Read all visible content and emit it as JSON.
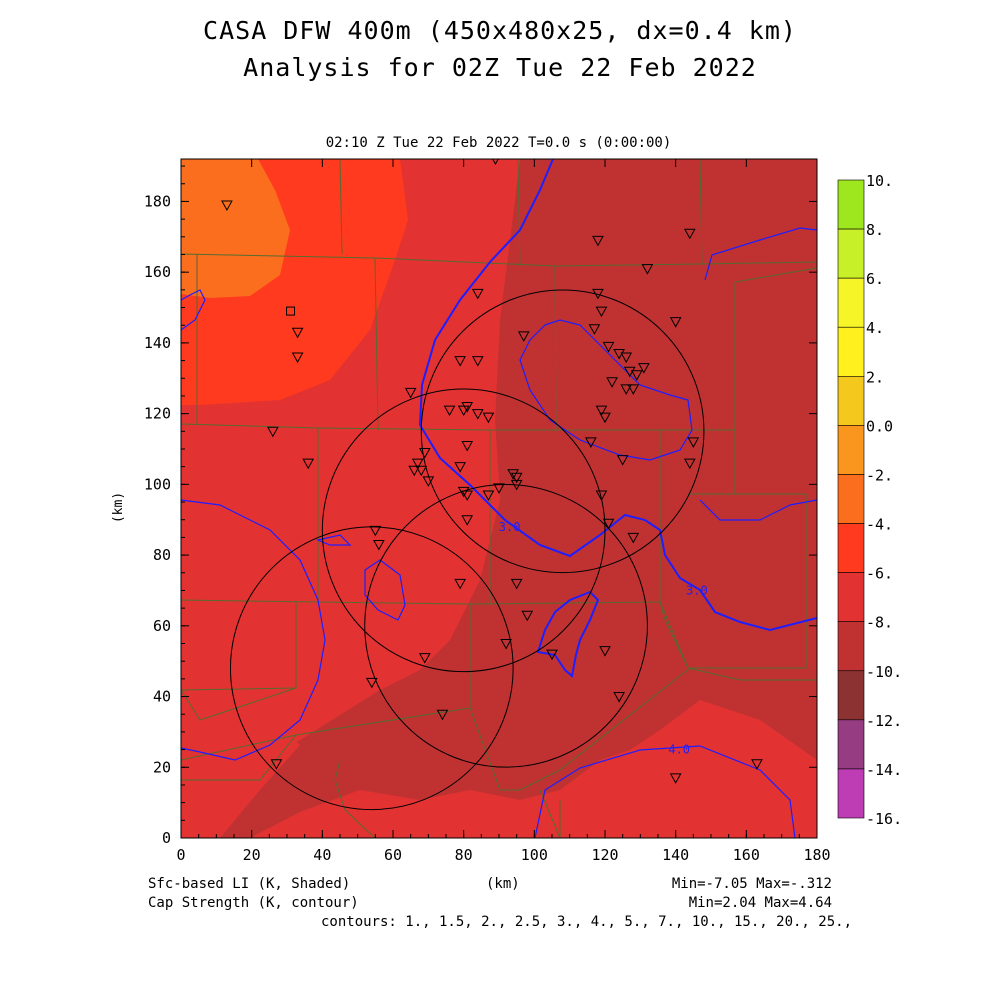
{
  "header": {
    "title_line1": "CASA DFW 400m (450x480x25, dx=0.4 km)",
    "title_line2": "Analysis for 02Z Tue 22 Feb 2022",
    "valid_time": "02:10 Z Tue 22 Feb 2022    T=0.0 s (0:00:00)"
  },
  "axes": {
    "x_label": "(km)",
    "y_label": "(km)",
    "x_range": [
      0,
      180
    ],
    "y_range": [
      0,
      192
    ],
    "x_ticks": [
      "0",
      "20",
      "40",
      "60",
      "80",
      "100",
      "120",
      "140",
      "160",
      "180"
    ],
    "y_ticks": [
      "0",
      "20",
      "40",
      "60",
      "80",
      "100",
      "120",
      "140",
      "160",
      "180"
    ]
  },
  "footer": {
    "shaded_field": "Sfc-based LI (K, Shaded)",
    "contour_field": "Cap Strength (K, contour)",
    "shaded_stats": "Min=-7.05 Max=-.312",
    "contour_stats": "Min=2.04 Max=4.64",
    "contour_levels": "contours: 1., 1.5, 2., 2.5, 3., 4., 5., 7., 10., 15., 20., 25.,"
  },
  "colorbar": {
    "levels": [
      {
        "label": "10.",
        "color": "#9ee61e"
      },
      {
        "label": "8.",
        "color": "#c8f028"
      },
      {
        "label": "6.",
        "color": "#f5f528"
      },
      {
        "label": "4.",
        "color": "#fff01e"
      },
      {
        "label": "2.",
        "color": "#f5c81e"
      },
      {
        "label": "0.0",
        "color": "#fa961e"
      },
      {
        "label": "-2.",
        "color": "#fa6e1e"
      },
      {
        "label": "-4.",
        "color": "#ff3a1e"
      },
      {
        "label": "-6.",
        "color": "#e33232"
      },
      {
        "label": "-8.",
        "color": "#c03232"
      },
      {
        "label": "-10.",
        "color": "#8c3232"
      },
      {
        "label": "-12.",
        "color": "#963c82"
      },
      {
        "label": "-14.",
        "color": "#be3cb4"
      },
      {
        "label": "-16.",
        "color": "#dc46dc"
      }
    ]
  },
  "contour_labels": [
    {
      "text": "3.0",
      "x": 93,
      "y": 88
    },
    {
      "text": "3.0",
      "x": 146,
      "y": 70
    },
    {
      "text": "4.0",
      "x": 141,
      "y": 25
    }
  ],
  "radars": [
    {
      "name": "radar-ring",
      "cx": 80,
      "cy": 87,
      "r": 40
    },
    {
      "name": "radar-ring",
      "cx": 108,
      "cy": 115,
      "r": 40
    },
    {
      "name": "radar-ring",
      "cx": 54,
      "cy": 48,
      "r": 40
    },
    {
      "name": "radar-ring",
      "cx": 92,
      "cy": 60,
      "r": 40
    }
  ],
  "stations": [
    [
      13,
      179
    ],
    [
      89,
      192
    ],
    [
      118,
      169
    ],
    [
      144,
      171
    ],
    [
      132,
      161
    ],
    [
      84,
      154
    ],
    [
      118,
      154
    ],
    [
      119,
      149
    ],
    [
      117,
      144
    ],
    [
      97,
      142
    ],
    [
      121,
      139
    ],
    [
      124,
      137
    ],
    [
      126,
      136
    ],
    [
      127,
      132
    ],
    [
      129,
      131
    ],
    [
      131,
      133
    ],
    [
      122,
      129
    ],
    [
      126,
      127
    ],
    [
      128,
      127
    ],
    [
      79,
      135
    ],
    [
      84,
      135
    ],
    [
      33,
      143
    ],
    [
      33,
      136
    ],
    [
      65,
      126
    ],
    [
      140,
      146
    ],
    [
      76,
      121
    ],
    [
      80,
      121
    ],
    [
      81,
      122
    ],
    [
      84,
      120
    ],
    [
      87,
      119
    ],
    [
      119,
      121
    ],
    [
      120,
      119
    ],
    [
      26,
      115
    ],
    [
      81,
      111
    ],
    [
      116,
      112
    ],
    [
      145,
      112
    ],
    [
      69,
      109
    ],
    [
      36,
      106
    ],
    [
      66,
      104
    ],
    [
      68,
      104
    ],
    [
      67,
      106
    ],
    [
      70,
      101
    ],
    [
      79,
      105
    ],
    [
      94,
      103
    ],
    [
      95,
      102
    ],
    [
      95,
      100
    ],
    [
      125,
      107
    ],
    [
      144,
      106
    ],
    [
      81,
      97
    ],
    [
      80,
      98
    ],
    [
      90,
      99
    ],
    [
      87,
      97
    ],
    [
      119,
      97
    ],
    [
      121,
      89
    ],
    [
      81,
      90
    ],
    [
      55,
      87
    ],
    [
      56,
      83
    ],
    [
      128,
      85
    ],
    [
      79,
      72
    ],
    [
      95,
      72
    ],
    [
      98,
      63
    ],
    [
      92,
      55
    ],
    [
      105,
      52
    ],
    [
      120,
      53
    ],
    [
      69,
      51
    ],
    [
      54,
      44
    ],
    [
      124,
      40
    ],
    [
      74,
      35
    ],
    [
      27,
      21
    ],
    [
      140,
      17
    ],
    [
      163,
      21
    ]
  ],
  "station_square": [
    31,
    149
  ]
}
